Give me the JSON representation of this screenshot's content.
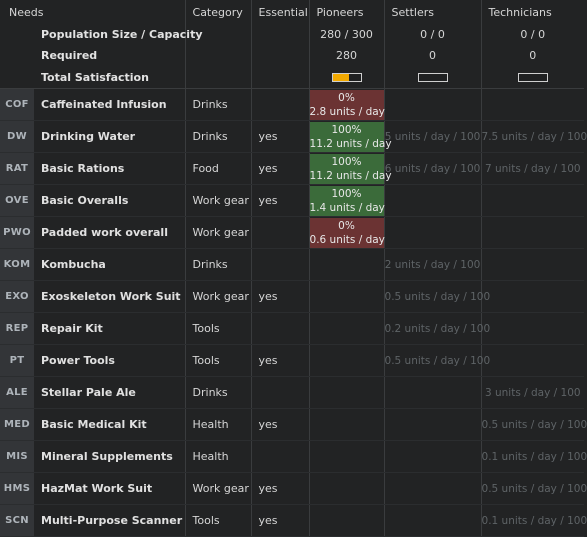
{
  "headers": {
    "needs": "Needs",
    "category": "Category",
    "essential": "Essential",
    "pioneers": "Pioneers",
    "settlers": "Settlers",
    "technicians": "Technicians"
  },
  "summary": {
    "population_label": "Population Size / Capacity",
    "required_label": "Required",
    "satisfaction_label": "Total Satisfaction",
    "pioneers": {
      "population": "280 / 300",
      "required": "280",
      "satisfaction": 0.6
    },
    "settlers": {
      "population": "0 / 0",
      "required": "0",
      "satisfaction": 0
    },
    "technicians": {
      "population": "0 / 0",
      "required": "0",
      "satisfaction": 0
    }
  },
  "colors": {
    "good": "#3b6b3a",
    "bad": "#6b3333",
    "satisfaction_fill": "#f2a900"
  },
  "rows": [
    {
      "ticker": "COF",
      "name": "Caffeinated Infusion",
      "category": "Drinks",
      "essential": "",
      "pioneers": {
        "pct": "0%",
        "rate": "2.8 units / day",
        "state": "bad"
      },
      "settlers": "",
      "technicians": ""
    },
    {
      "ticker": "DW",
      "name": "Drinking Water",
      "category": "Drinks",
      "essential": "yes",
      "pioneers": {
        "pct": "100%",
        "rate": "11.2 units / day",
        "state": "good"
      },
      "settlers": "5 units / day / 100",
      "technicians": "7.5 units / day / 100"
    },
    {
      "ticker": "RAT",
      "name": "Basic Rations",
      "category": "Food",
      "essential": "yes",
      "pioneers": {
        "pct": "100%",
        "rate": "11.2 units / day",
        "state": "good"
      },
      "settlers": "6 units / day / 100",
      "technicians": "7 units / day / 100"
    },
    {
      "ticker": "OVE",
      "name": "Basic Overalls",
      "category": "Work gear",
      "essential": "yes",
      "pioneers": {
        "pct": "100%",
        "rate": "1.4 units / day",
        "state": "good"
      },
      "settlers": "",
      "technicians": ""
    },
    {
      "ticker": "PWO",
      "name": "Padded work overall",
      "category": "Work gear",
      "essential": "",
      "pioneers": {
        "pct": "0%",
        "rate": "0.6 units / day",
        "state": "bad"
      },
      "settlers": "",
      "technicians": ""
    },
    {
      "ticker": "KOM",
      "name": "Kombucha",
      "category": "Drinks",
      "essential": "",
      "pioneers": null,
      "settlers": "2 units / day / 100",
      "technicians": ""
    },
    {
      "ticker": "EXO",
      "name": "Exoskeleton Work Suit",
      "category": "Work gear",
      "essential": "yes",
      "pioneers": null,
      "settlers": "0.5 units / day / 100",
      "technicians": ""
    },
    {
      "ticker": "REP",
      "name": "Repair Kit",
      "category": "Tools",
      "essential": "",
      "pioneers": null,
      "settlers": "0.2 units / day / 100",
      "technicians": ""
    },
    {
      "ticker": "PT",
      "name": "Power Tools",
      "category": "Tools",
      "essential": "yes",
      "pioneers": null,
      "settlers": "0.5 units / day / 100",
      "technicians": ""
    },
    {
      "ticker": "ALE",
      "name": "Stellar Pale Ale",
      "category": "Drinks",
      "essential": "",
      "pioneers": null,
      "settlers": "",
      "technicians": "3 units / day / 100"
    },
    {
      "ticker": "MED",
      "name": "Basic Medical Kit",
      "category": "Health",
      "essential": "yes",
      "pioneers": null,
      "settlers": "",
      "technicians": "0.5 units / day / 100"
    },
    {
      "ticker": "MIS",
      "name": "Mineral Supplements",
      "category": "Health",
      "essential": "",
      "pioneers": null,
      "settlers": "",
      "technicians": "0.1 units / day / 100"
    },
    {
      "ticker": "HMS",
      "name": "HazMat Work Suit",
      "category": "Work gear",
      "essential": "yes",
      "pioneers": null,
      "settlers": "",
      "technicians": "0.5 units / day / 100"
    },
    {
      "ticker": "SCN",
      "name": "Multi-Purpose Scanner",
      "category": "Tools",
      "essential": "yes",
      "pioneers": null,
      "settlers": "",
      "technicians": "0.1 units / day / 100"
    }
  ]
}
